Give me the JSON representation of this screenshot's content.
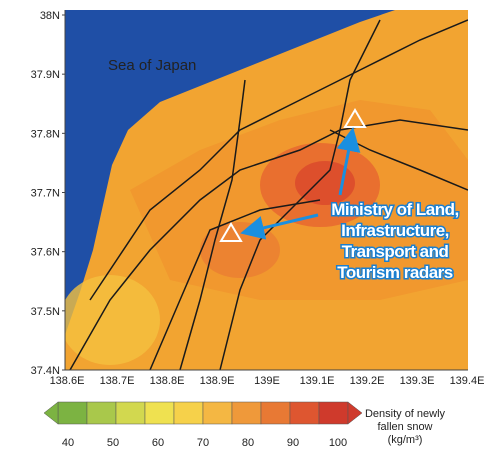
{
  "map": {
    "lat_labels": [
      "38N",
      "37.9N",
      "37.8N",
      "37.7N",
      "37.6N",
      "37.5N",
      "37.4N"
    ],
    "lon_labels": [
      "138.6E",
      "138.7E",
      "138.8E",
      "138.9E",
      "139E",
      "139.1E",
      "139.2E",
      "139.3E",
      "139.4E"
    ],
    "sea_label": "Sea of Japan",
    "annotation": [
      "Ministry of Land,",
      "Infrastructure,",
      "Transport and",
      "Tourism radars"
    ]
  },
  "colorbar": {
    "ticks": [
      40,
      50,
      60,
      70,
      80,
      90,
      100
    ],
    "colors": [
      "#7cb342",
      "#a9c84b",
      "#d2d84f",
      "#efe150",
      "#f6d14a",
      "#f4b743",
      "#ef993a",
      "#e87934",
      "#de5630",
      "#cf3a2c"
    ],
    "label": [
      "Density of newly",
      "fallen snow",
      "(kg/m³)"
    ]
  }
}
